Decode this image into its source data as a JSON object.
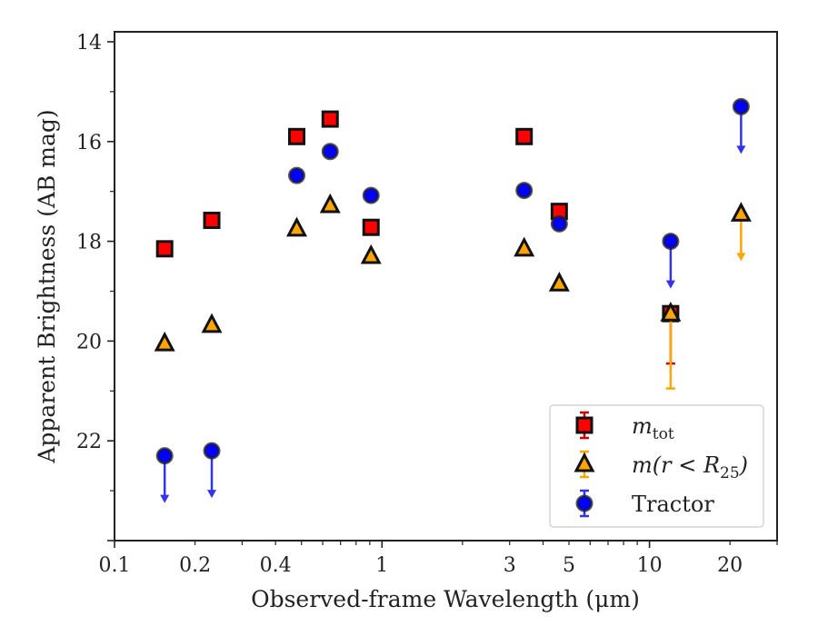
{
  "chart_data": {
    "type": "scatter",
    "title": "",
    "xlabel": "Observed-frame Wavelength (μm)",
    "ylabel": "Apparent Brightness (AB mag)",
    "xscale": "log",
    "yscale": "linear",
    "y_inverted": true,
    "xlim": [
      0.1,
      30
    ],
    "ylim": [
      24.0,
      13.8
    ],
    "xticks": [
      {
        "value": 0.1,
        "label": "0.1"
      },
      {
        "value": 0.2,
        "label": "0.2"
      },
      {
        "value": 0.4,
        "label": "0.4"
      },
      {
        "value": 1,
        "label": "1"
      },
      {
        "value": 3,
        "label": "3"
      },
      {
        "value": 5,
        "label": "5"
      },
      {
        "value": 10,
        "label": "10"
      },
      {
        "value": 20,
        "label": "20"
      }
    ],
    "yticks": [
      {
        "value": 14,
        "label": "14"
      },
      {
        "value": 16,
        "label": "16"
      },
      {
        "value": 18,
        "label": "18"
      },
      {
        "value": 20,
        "label": "20"
      },
      {
        "value": 22,
        "label": "22"
      }
    ],
    "grid": false,
    "legend_position": "lower-right",
    "series": [
      {
        "name": "m_tot",
        "marker": "square",
        "color": "#ff0000",
        "edge_color": "#111111",
        "error_color": "#cc0000",
        "points": [
          {
            "x": 0.154,
            "y": 18.15
          },
          {
            "x": 0.231,
            "y": 17.58
          },
          {
            "x": 0.48,
            "y": 15.9
          },
          {
            "x": 0.64,
            "y": 15.55
          },
          {
            "x": 0.91,
            "y": 17.72
          },
          {
            "x": 3.4,
            "y": 15.9
          },
          {
            "x": 4.6,
            "y": 17.4
          },
          {
            "x": 12.0,
            "y": 19.45,
            "err_lo": 0.0,
            "err_hi": 1.0
          }
        ]
      },
      {
        "name": "m(r < R25)",
        "marker": "triangle",
        "color": "#ffa500",
        "edge_color": "#111111",
        "error_color": "#ffa500",
        "points": [
          {
            "x": 0.154,
            "y": 20.05
          },
          {
            "x": 0.231,
            "y": 19.68
          },
          {
            "x": 0.48,
            "y": 17.75
          },
          {
            "x": 0.64,
            "y": 17.28
          },
          {
            "x": 0.91,
            "y": 18.3
          },
          {
            "x": 3.4,
            "y": 18.15
          },
          {
            "x": 4.6,
            "y": 18.85
          },
          {
            "x": 12.0,
            "y": 19.45,
            "err_lo": 0.0,
            "err_hi": 1.5
          },
          {
            "x": 22.0,
            "y": 17.45,
            "upper_limit": true
          }
        ]
      },
      {
        "name": "Tractor",
        "marker": "circle",
        "color": "#0000ff",
        "edge_color": "#222222",
        "error_color": "#3333ee",
        "points": [
          {
            "x": 0.154,
            "y": 22.3,
            "upper_limit": true
          },
          {
            "x": 0.231,
            "y": 22.2,
            "upper_limit": true
          },
          {
            "x": 0.48,
            "y": 16.68
          },
          {
            "x": 0.64,
            "y": 16.2
          },
          {
            "x": 0.91,
            "y": 17.08
          },
          {
            "x": 3.4,
            "y": 16.98
          },
          {
            "x": 4.6,
            "y": 17.65
          },
          {
            "x": 12.0,
            "y": 18.0,
            "upper_limit": true
          },
          {
            "x": 22.0,
            "y": 15.3,
            "upper_limit": true
          }
        ]
      }
    ],
    "legend": [
      {
        "series": "m_tot",
        "text_main": "m",
        "text_sub": "tot"
      },
      {
        "series": "m(r < R25)",
        "text_main": "m(r < R",
        "text_sub": "25",
        "text_tail": ")"
      },
      {
        "series": "Tractor",
        "text_main": "Tractor",
        "text_sub": "",
        "text_tail": ""
      }
    ]
  }
}
